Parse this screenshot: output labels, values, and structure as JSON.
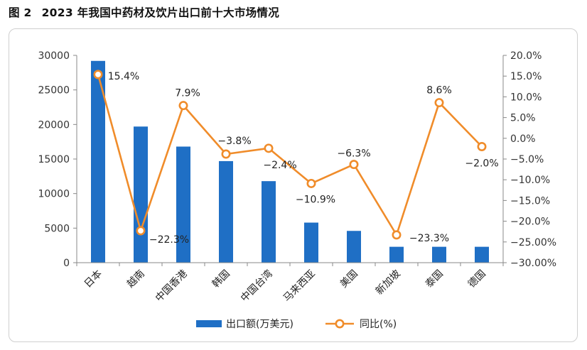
{
  "figure": {
    "number": "图 2",
    "title": "2023 年我国中药材及饮片出口前十大市场情况"
  },
  "colors": {
    "bar": "#1f6fc5",
    "line": "#f08c2a",
    "axis": "#888888"
  },
  "chart_data": {
    "type": "bar",
    "categories": [
      "日本",
      "越南",
      "中国香港",
      "韩国",
      "中国台湾",
      "马来西亚",
      "美国",
      "新加坡",
      "泰国",
      "德国"
    ],
    "series": [
      {
        "name": "出口额(万美元)",
        "type": "bar",
        "axis": "left",
        "values": [
          29200,
          19700,
          16800,
          14700,
          11800,
          5800,
          4600,
          2300,
          2300,
          2300
        ]
      },
      {
        "name": "同比(%)",
        "type": "line",
        "axis": "right",
        "values": [
          15.4,
          -22.3,
          7.9,
          -3.8,
          -2.4,
          -10.9,
          -6.3,
          -23.3,
          8.6,
          -2.0
        ],
        "labels": [
          "15.4%",
          "−22.3%",
          "7.9%",
          "−3.8%",
          "−2.4%",
          "−10.9%",
          "−6.3%",
          "−23.3%",
          "8.6%",
          "−2.0%"
        ]
      }
    ],
    "y_left": {
      "min": 0,
      "max": 30000,
      "ticks": [
        0,
        5000,
        10000,
        15000,
        20000,
        25000,
        30000
      ],
      "tick_labels": [
        "0",
        "5000",
        "10000",
        "15000",
        "20000",
        "25000",
        "30000"
      ]
    },
    "y_right": {
      "min": -30,
      "max": 20,
      "ticks": [
        20,
        15,
        10,
        5,
        0,
        -5,
        -10,
        -15,
        -20,
        -25,
        -30
      ],
      "tick_labels": [
        "20.0%",
        "15.0%",
        "10.0%",
        "5.0%",
        "0.0%",
        "−5.0%",
        "−10.0%",
        "−15.0%",
        "−20.0%",
        "−25.00%",
        "−30.00%"
      ]
    },
    "grid": false,
    "legend_position": "bottom",
    "legend": [
      "出口额(万美元)",
      "同比(%)"
    ]
  }
}
